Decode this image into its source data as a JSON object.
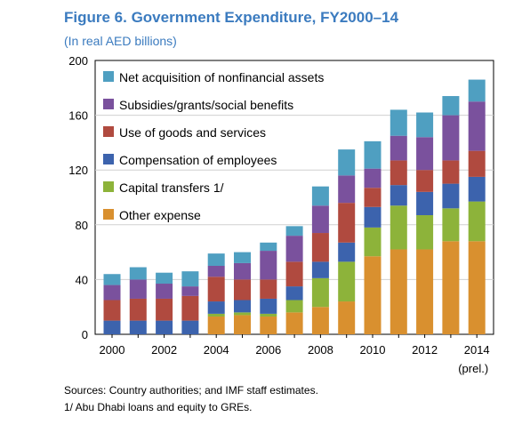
{
  "chart_data": {
    "type": "bar",
    "stacked": true,
    "title": "Figure 6. Government Expenditure, FY2000–14",
    "subtitle": "(In real AED billions)",
    "categories": [
      "2000",
      "2001",
      "2002",
      "2003",
      "2004",
      "2005",
      "2006",
      "2007",
      "2008",
      "2009",
      "2010",
      "2011",
      "2012",
      "2013",
      "2014"
    ],
    "x_tick_labels": [
      "2000",
      "2002",
      "2004",
      "2006",
      "2008",
      "2010",
      "2012",
      "2014"
    ],
    "x_extra_label": "(prel.)",
    "ylim": [
      0,
      200
    ],
    "yticks": [
      0,
      40,
      80,
      120,
      160,
      200
    ],
    "legend_position": "top-left",
    "series": [
      {
        "name": "Other expense",
        "color": "#d9902f",
        "values": [
          0,
          0,
          0,
          0,
          13,
          14,
          13,
          16,
          20,
          24,
          57,
          62,
          62,
          68,
          68
        ]
      },
      {
        "name": "Capital transfers 1/",
        "color": "#8db33a",
        "values": [
          0,
          0,
          0,
          0,
          2,
          2,
          2,
          9,
          21,
          29,
          21,
          32,
          25,
          24,
          29
        ]
      },
      {
        "name": "Compensation of employees",
        "color": "#3c63ad",
        "values": [
          10,
          10,
          10,
          10,
          9,
          9,
          11,
          10,
          12,
          14,
          15,
          15,
          17,
          18,
          18
        ]
      },
      {
        "name": "Use of goods and services",
        "color": "#b04a3f",
        "values": [
          15,
          16,
          16,
          18,
          18,
          15,
          14,
          18,
          21,
          29,
          14,
          18,
          16,
          17,
          19
        ]
      },
      {
        "name": "Subsidies/grants/social benefits",
        "color": "#7a519d",
        "values": [
          11,
          14,
          11,
          7,
          8,
          12,
          21,
          19,
          20,
          20,
          14,
          18,
          24,
          33,
          36
        ]
      },
      {
        "name": "Net acquisition of nonfinancial assets",
        "color": "#4f9fc1",
        "values": [
          8,
          9,
          8,
          11,
          9,
          8,
          6,
          7,
          14,
          19,
          20,
          19,
          18,
          14,
          16
        ]
      }
    ]
  },
  "footer": {
    "source": "Sources: Country authorities; and IMF staff estimates.",
    "note": "1/ Abu Dhabi loans and equity to GREs."
  }
}
